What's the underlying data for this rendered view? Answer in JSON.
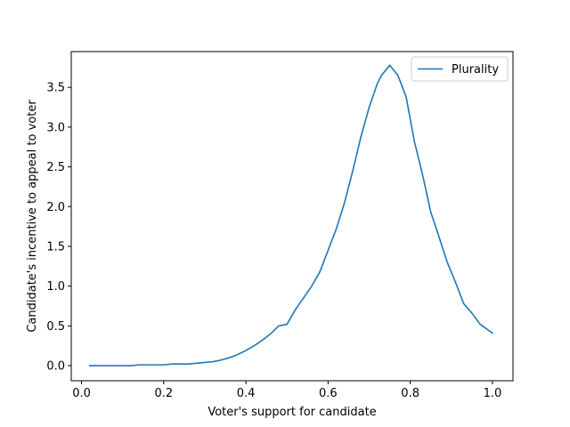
{
  "chart_data": {
    "type": "line",
    "xlabel": "Voter's support for candidate",
    "ylabel": "Candidate's incentive to appeal to voter",
    "xlim": [
      -0.025,
      1.05
    ],
    "ylim": [
      -0.19,
      3.95
    ],
    "xticks": [
      0.0,
      0.2,
      0.4,
      0.6,
      0.8,
      1.0
    ],
    "xtick_labels": [
      "0.0",
      "0.2",
      "0.4",
      "0.6",
      "0.8",
      "1.0"
    ],
    "yticks": [
      0.0,
      0.5,
      1.0,
      1.5,
      2.0,
      2.5,
      3.0,
      3.5
    ],
    "ytick_labels": [
      "0.0",
      "0.5",
      "1.0",
      "1.5",
      "2.0",
      "2.5",
      "3.0",
      "3.5"
    ],
    "grid": false,
    "legend_position": "top-right",
    "series": [
      {
        "name": "Plurality",
        "color": "#1f77b4",
        "x": [
          0.02,
          0.04,
          0.06,
          0.08,
          0.1,
          0.12,
          0.14,
          0.16,
          0.18,
          0.2,
          0.22,
          0.24,
          0.26,
          0.28,
          0.3,
          0.32,
          0.34,
          0.36,
          0.38,
          0.4,
          0.42,
          0.44,
          0.46,
          0.48,
          0.5,
          0.52,
          0.54,
          0.56,
          0.58,
          0.6,
          0.62,
          0.64,
          0.66,
          0.68,
          0.7,
          0.72,
          0.73,
          0.75,
          0.77,
          0.79,
          0.81,
          0.83,
          0.85,
          0.87,
          0.89,
          0.91,
          0.93,
          0.95,
          0.97,
          1.0
        ],
        "values": [
          0.0,
          0.0,
          0.0,
          0.0,
          0.0,
          0.0,
          0.01,
          0.01,
          0.01,
          0.01,
          0.02,
          0.02,
          0.02,
          0.03,
          0.04,
          0.05,
          0.07,
          0.1,
          0.14,
          0.19,
          0.25,
          0.32,
          0.4,
          0.5,
          0.52,
          0.7,
          0.85,
          1.0,
          1.18,
          1.45,
          1.72,
          2.05,
          2.45,
          2.88,
          3.25,
          3.55,
          3.65,
          3.78,
          3.65,
          3.38,
          2.82,
          2.4,
          1.93,
          1.62,
          1.3,
          1.05,
          0.78,
          0.66,
          0.52,
          0.41
        ]
      }
    ]
  }
}
